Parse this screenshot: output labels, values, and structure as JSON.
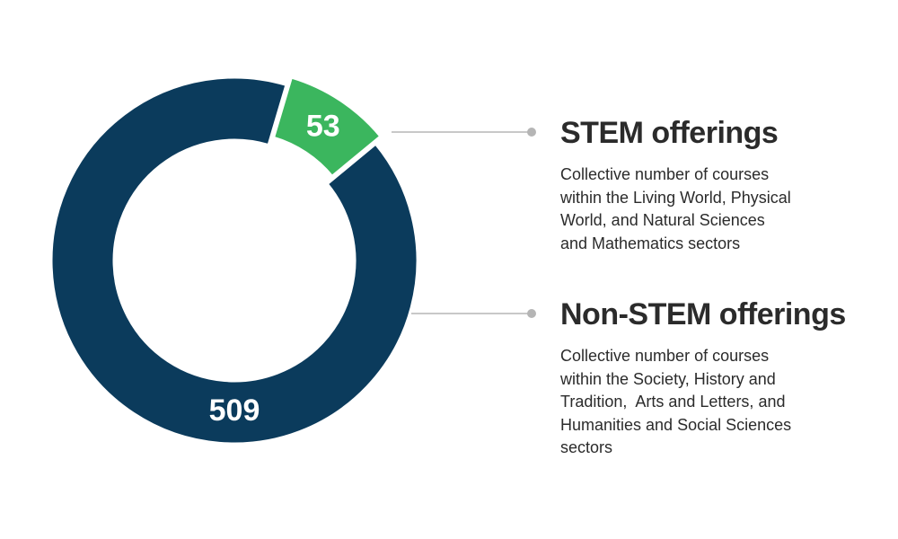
{
  "chart_data": {
    "type": "pie",
    "variant": "donut",
    "series": [
      {
        "name": "STEM offerings",
        "value": 53,
        "label": "53",
        "color": "#3bb65e",
        "description_lines": [
          "Collective number of courses",
          "within the Living World, Physical",
          "World, and Natural Sciences",
          "and Mathematics sectors"
        ]
      },
      {
        "name": "Non-STEM offerings",
        "value": 509,
        "label": "509",
        "color": "#0b3b5c",
        "description_lines": [
          "Collective number of courses",
          "within the Society, History and",
          "Tradition,  Arts and Letters, and",
          "Humanities and Social Sciences",
          "sectors"
        ]
      }
    ],
    "legend_position": "right",
    "leader_line_color": "#b5b5b5"
  }
}
